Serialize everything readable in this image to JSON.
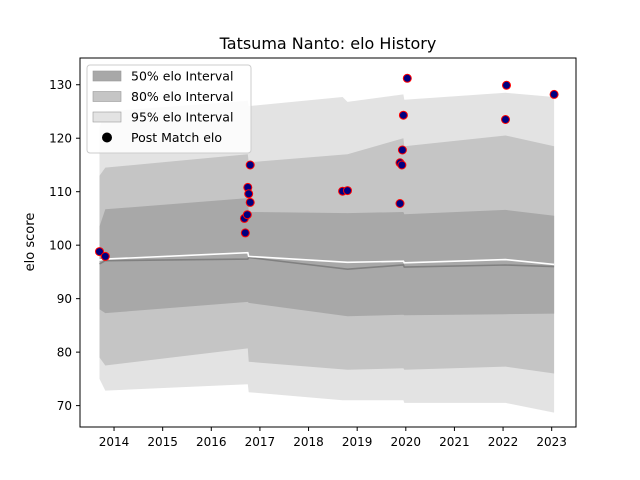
{
  "chart_data": {
    "type": "area",
    "title": "Tatsuma Nanto: elo History",
    "xlabel": "",
    "ylabel": "elo score",
    "xlim": [
      2013.3,
      2023.5
    ],
    "ylim": [
      66,
      135
    ],
    "x_ticks": [
      2014,
      2015,
      2016,
      2017,
      2018,
      2019,
      2020,
      2021,
      2022,
      2023
    ],
    "y_ticks": [
      70,
      80,
      90,
      100,
      110,
      120,
      130
    ],
    "legend_position": "top-left",
    "grid": false,
    "colors": {
      "band50": "#a8a8a8",
      "band80": "#c5c5c5",
      "band95": "#e3e3e3",
      "mean_line": "#808080",
      "upper_line": "#ffffff",
      "point_fill": "#000080",
      "point_edge": "#ff0000"
    },
    "series": [
      {
        "name": "50% elo Interval",
        "kind": "band",
        "color": "#a8a8a8",
        "points": [
          {
            "x": 2013.7,
            "lo": 88.0,
            "hi": 103.5
          },
          {
            "x": 2013.82,
            "lo": 87.3,
            "hi": 106.7
          },
          {
            "x": 2016.75,
            "lo": 89.4,
            "hi": 108.8
          },
          {
            "x": 2016.77,
            "lo": 89.2,
            "hi": 106.2
          },
          {
            "x": 2018.8,
            "lo": 86.7,
            "hi": 106.0
          },
          {
            "x": 2019.95,
            "lo": 87.0,
            "hi": 106.2
          },
          {
            "x": 2019.97,
            "lo": 86.9,
            "hi": 105.8
          },
          {
            "x": 2022.05,
            "lo": 87.1,
            "hi": 106.6
          },
          {
            "x": 2023.05,
            "lo": 87.2,
            "hi": 105.5
          }
        ]
      },
      {
        "name": "80% elo Interval",
        "kind": "band",
        "color": "#c5c5c5",
        "points": [
          {
            "x": 2013.7,
            "lo": 79.0,
            "hi": 113.0
          },
          {
            "x": 2013.82,
            "lo": 77.5,
            "hi": 114.5
          },
          {
            "x": 2016.75,
            "lo": 80.7,
            "hi": 117.0
          },
          {
            "x": 2016.77,
            "lo": 78.2,
            "hi": 115.5
          },
          {
            "x": 2018.8,
            "lo": 76.7,
            "hi": 117.0
          },
          {
            "x": 2019.95,
            "lo": 77.0,
            "hi": 120.0
          },
          {
            "x": 2019.97,
            "lo": 76.7,
            "hi": 118.5
          },
          {
            "x": 2022.05,
            "lo": 77.3,
            "hi": 120.5
          },
          {
            "x": 2023.05,
            "lo": 76.0,
            "hi": 118.5
          }
        ]
      },
      {
        "name": "95% elo Interval",
        "kind": "band",
        "color": "#e3e3e3",
        "points": [
          {
            "x": 2013.7,
            "lo": 75.0,
            "hi": 122.0
          },
          {
            "x": 2013.82,
            "lo": 72.8,
            "hi": 125.0
          },
          {
            "x": 2016.75,
            "lo": 74.0,
            "hi": 127.0
          },
          {
            "x": 2016.77,
            "lo": 72.5,
            "hi": 126.0
          },
          {
            "x": 2018.7,
            "lo": 71.0,
            "hi": 127.7
          },
          {
            "x": 2018.8,
            "lo": 71.0,
            "hi": 126.8
          },
          {
            "x": 2019.95,
            "lo": 71.0,
            "hi": 128.2
          },
          {
            "x": 2019.97,
            "lo": 70.5,
            "hi": 127.2
          },
          {
            "x": 2022.05,
            "lo": 70.5,
            "hi": 128.5
          },
          {
            "x": 2023.05,
            "lo": 68.7,
            "hi": 127.7
          }
        ]
      },
      {
        "name": "Mean elo",
        "kind": "line",
        "color": "#808080",
        "points": [
          {
            "x": 2013.7,
            "y": 96.5
          },
          {
            "x": 2013.82,
            "y": 97.1
          },
          {
            "x": 2016.75,
            "y": 97.4
          },
          {
            "x": 2016.77,
            "y": 97.7
          },
          {
            "x": 2018.8,
            "y": 95.5
          },
          {
            "x": 2019.95,
            "y": 96.3
          },
          {
            "x": 2019.97,
            "y": 95.9
          },
          {
            "x": 2022.05,
            "y": 96.3
          },
          {
            "x": 2023.05,
            "y": 96.0
          }
        ]
      },
      {
        "name": "Upper elo",
        "kind": "line",
        "color": "#ffffff",
        "points": [
          {
            "x": 2013.7,
            "y": 97.2
          },
          {
            "x": 2013.82,
            "y": 97.4
          },
          {
            "x": 2016.75,
            "y": 98.6
          },
          {
            "x": 2016.77,
            "y": 97.9
          },
          {
            "x": 2018.8,
            "y": 96.8
          },
          {
            "x": 2019.95,
            "y": 97.0
          },
          {
            "x": 2019.97,
            "y": 96.7
          },
          {
            "x": 2022.05,
            "y": 97.3
          },
          {
            "x": 2023.05,
            "y": 96.4
          }
        ]
      },
      {
        "name": "Post Match elo",
        "kind": "scatter",
        "points": [
          {
            "x": 2013.7,
            "y": 98.8
          },
          {
            "x": 2013.82,
            "y": 97.9
          },
          {
            "x": 2016.68,
            "y": 105.0
          },
          {
            "x": 2016.7,
            "y": 102.3
          },
          {
            "x": 2016.74,
            "y": 105.7
          },
          {
            "x": 2016.75,
            "y": 110.8
          },
          {
            "x": 2016.77,
            "y": 109.6
          },
          {
            "x": 2016.8,
            "y": 108.0
          },
          {
            "x": 2016.8,
            "y": 115.0
          },
          {
            "x": 2018.7,
            "y": 110.1
          },
          {
            "x": 2018.8,
            "y": 110.2
          },
          {
            "x": 2019.88,
            "y": 115.4
          },
          {
            "x": 2019.88,
            "y": 107.8
          },
          {
            "x": 2019.92,
            "y": 115.0
          },
          {
            "x": 2019.93,
            "y": 117.8
          },
          {
            "x": 2019.95,
            "y": 124.3
          },
          {
            "x": 2020.03,
            "y": 131.2
          },
          {
            "x": 2022.05,
            "y": 123.5
          },
          {
            "x": 2022.07,
            "y": 129.9
          },
          {
            "x": 2023.05,
            "y": 128.2
          }
        ]
      }
    ],
    "legend": [
      {
        "label": "50% elo Interval",
        "swatch": "band",
        "color": "#a8a8a8"
      },
      {
        "label": "80% elo Interval",
        "swatch": "band",
        "color": "#c5c5c5"
      },
      {
        "label": "95% elo Interval",
        "swatch": "band",
        "color": "#e3e3e3"
      },
      {
        "label": "Post Match elo",
        "swatch": "marker",
        "color": "#000000"
      }
    ]
  }
}
